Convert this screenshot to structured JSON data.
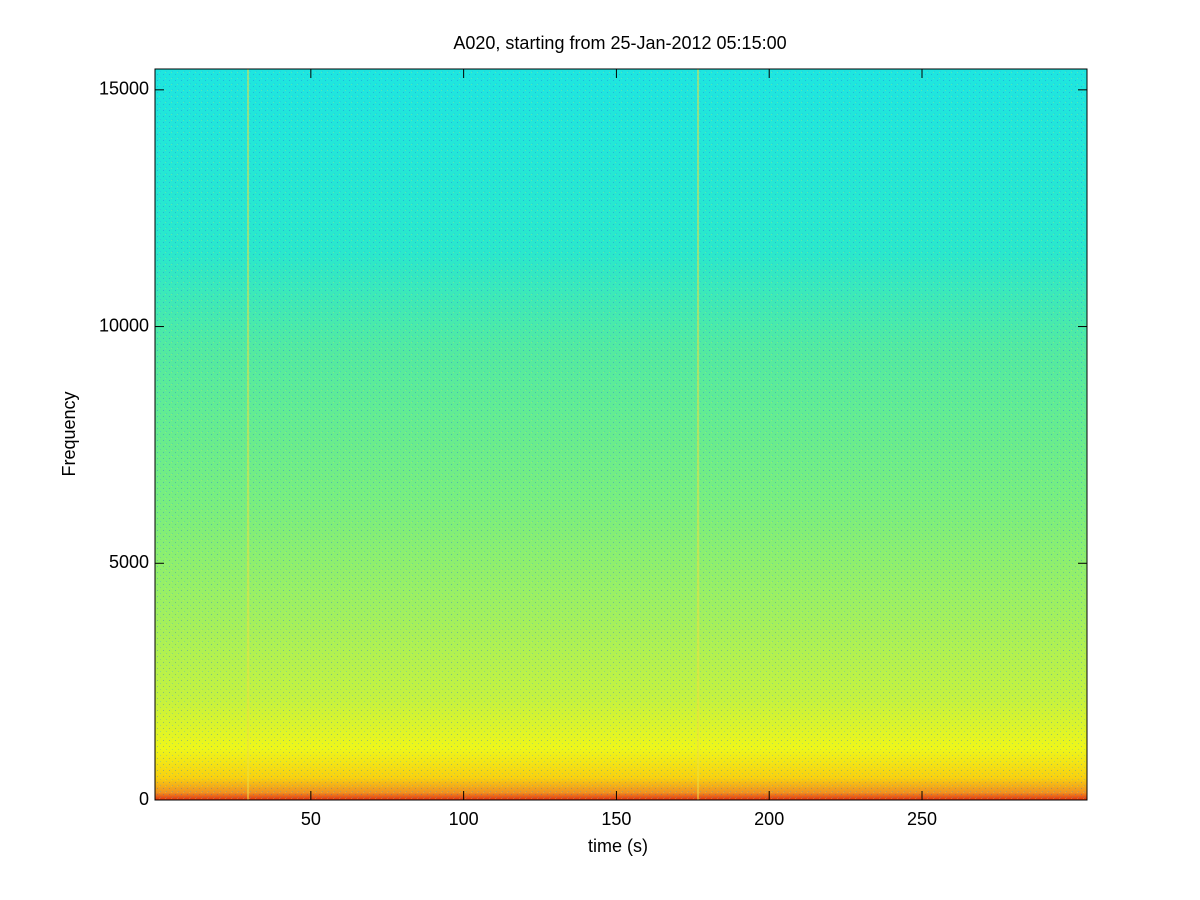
{
  "chart_data": {
    "type": "spectrogram",
    "title": "A020, starting from 25-Jan-2012 05:15:00",
    "x_label": "time (s)",
    "y_label": "Frequency",
    "xlim": [
      -1,
      304
    ],
    "xticks": [
      50,
      100,
      150,
      200,
      250
    ],
    "ylim": [
      0,
      15440
    ],
    "yticks": [
      0,
      5000,
      10000,
      15000
    ]
  }
}
